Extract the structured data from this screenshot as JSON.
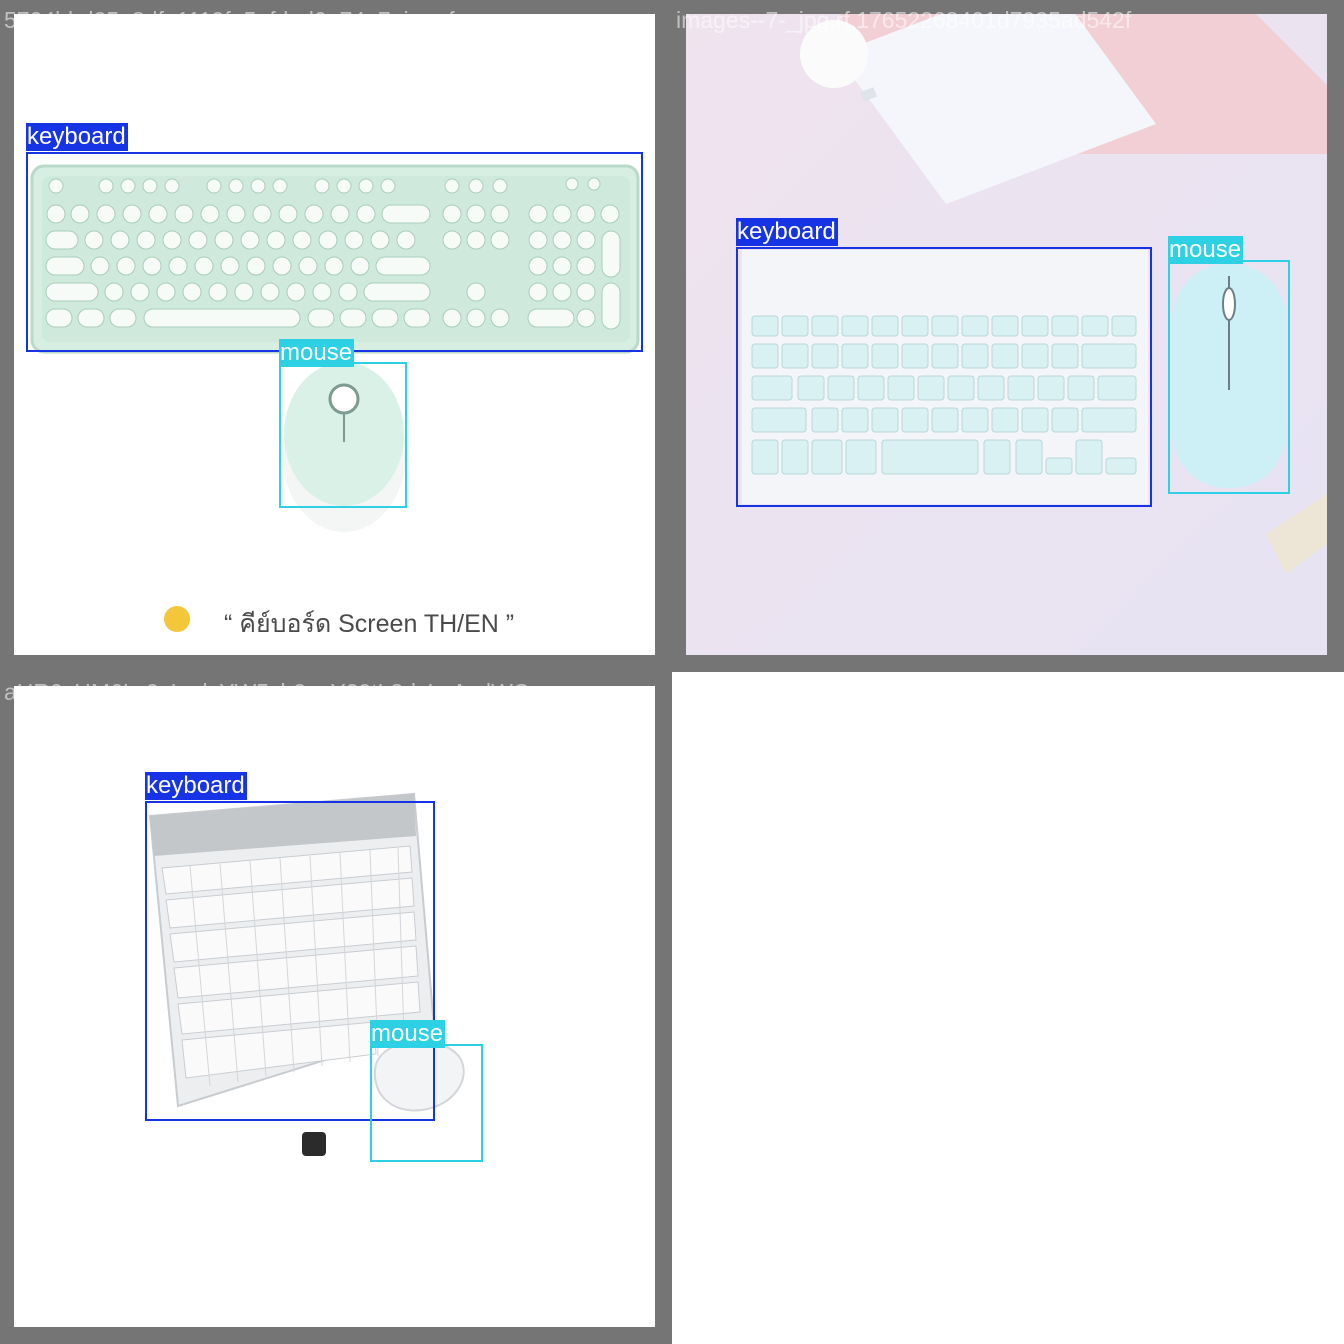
{
  "tiles": [
    {
      "filename": "5704bbd25e8dfa1119fe5afdad0e74e7_jpg.rf.",
      "caption": "“ คีย์บอร์ด Screen TH/EN ”",
      "labels": {
        "keyboard": "keyboard",
        "mouse": "mouse"
      }
    },
    {
      "filename": "images--7-_jpg.rf.17652268401d7935ad542f",
      "labels": {
        "keyboard": "keyboard",
        "mouse": "mouse"
      }
    },
    {
      "filename": "aHR0cHM6Ly9zLmlzYW5vb2suY29tL3dvLzAvdWQv",
      "labels": {
        "keyboard": "keyboard",
        "mouse": "mouse"
      }
    }
  ],
  "colors": {
    "keyboard_box": "#1733e6",
    "mouse_box": "#2ed1e3",
    "frame": "#757575"
  }
}
